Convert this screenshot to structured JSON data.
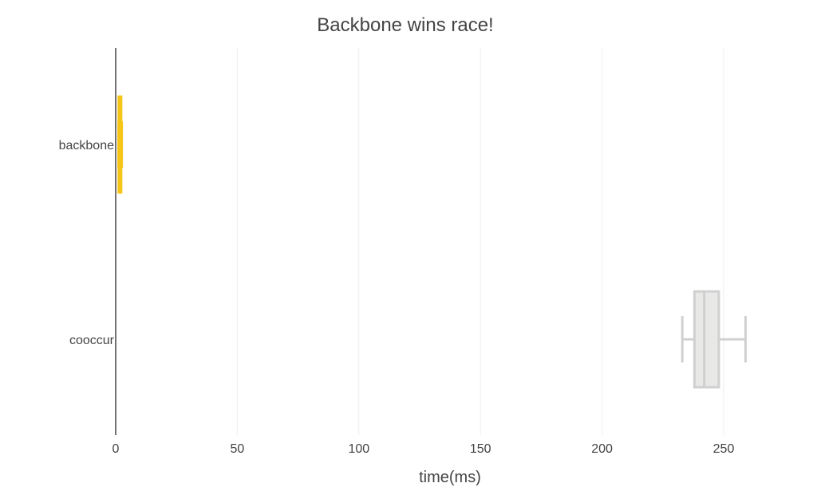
{
  "chart_data": {
    "type": "box",
    "title": "Backbone wins race!",
    "xlabel": "time(ms)",
    "ylabel": "",
    "xlim": [
      0,
      270
    ],
    "x_ticks": [
      0,
      50,
      100,
      150,
      200,
      250
    ],
    "grid": true,
    "legend": "none",
    "categories": [
      "backbone",
      "cooccur"
    ],
    "series": [
      {
        "category": "backbone",
        "color": "#f5c518",
        "min": 1.2,
        "q1": 1.5,
        "median": 1.7,
        "q3": 2.0,
        "max": 2.5
      },
      {
        "category": "cooccur",
        "color": "#d0d0d0",
        "fill": "#e8e8e6",
        "min": 233,
        "q1": 238,
        "median": 242,
        "q3": 248,
        "max": 259
      }
    ]
  },
  "colors": {
    "axis": "#444444",
    "grid": "#eeeeee",
    "text": "#444444"
  }
}
